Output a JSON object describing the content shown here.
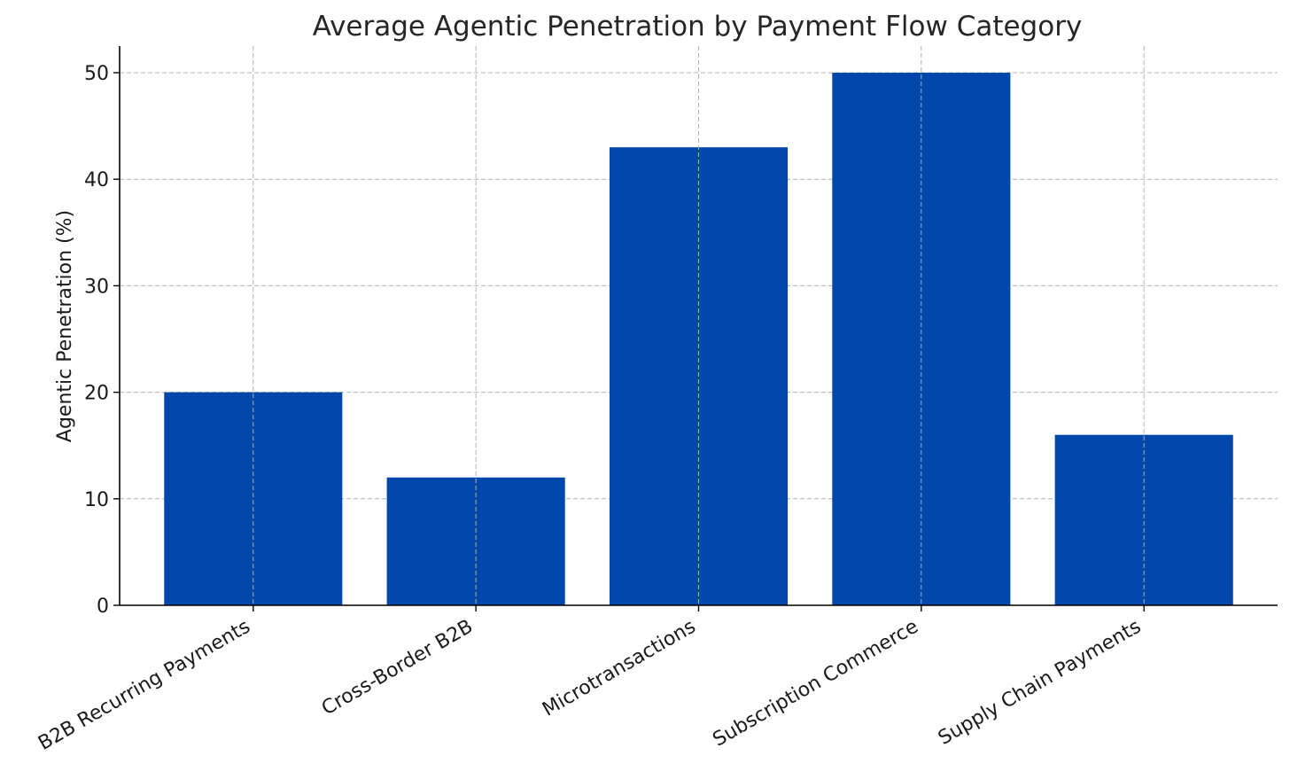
{
  "chart_data": {
    "type": "bar",
    "title": "Average Agentic Penetration by Payment Flow Category",
    "xlabel": "",
    "ylabel": "Agentic Penetration (%)",
    "categories": [
      "B2B Recurring Payments",
      "Cross-Border B2B",
      "Microtransactions",
      "Subscription Commerce",
      "Supply Chain Payments"
    ],
    "values": [
      20,
      12,
      43,
      50,
      16
    ],
    "ylim": [
      0,
      52.5
    ],
    "yticks": [
      0,
      10,
      20,
      30,
      40,
      50
    ],
    "grid": true,
    "legend": "none",
    "bar_color": "#0047AB"
  }
}
